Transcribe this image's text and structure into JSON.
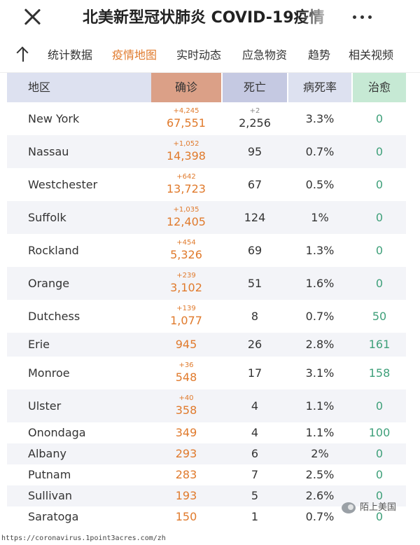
{
  "header": {
    "title": "北美新型冠状肺炎 COVID-19疫情"
  },
  "tabs": [
    {
      "label": "统计数据",
      "active": false
    },
    {
      "label": "疫情地图",
      "active": true
    },
    {
      "label": "实时动态",
      "active": false
    },
    {
      "label": "应急物资",
      "active": false
    },
    {
      "label": "趋势",
      "active": false
    },
    {
      "label": "相关视频",
      "active": false
    }
  ],
  "table": {
    "headers": {
      "region": "地区",
      "confirmed": "确诊",
      "deaths": "死亡",
      "fatality_rate": "病死率",
      "recovered": "治愈"
    },
    "rows": [
      {
        "region": "New York",
        "confirmed_delta": "+4,245",
        "confirmed": "67,551",
        "deaths_delta": "+2",
        "deaths": "2,256",
        "rate": "3.3%",
        "recovered": "0"
      },
      {
        "region": "Nassau",
        "confirmed_delta": "+1,052",
        "confirmed": "14,398",
        "deaths_delta": "",
        "deaths": "95",
        "rate": "0.7%",
        "recovered": "0"
      },
      {
        "region": "Westchester",
        "confirmed_delta": "+642",
        "confirmed": "13,723",
        "deaths_delta": "",
        "deaths": "67",
        "rate": "0.5%",
        "recovered": "0"
      },
      {
        "region": "Suffolk",
        "confirmed_delta": "+1,035",
        "confirmed": "12,405",
        "deaths_delta": "",
        "deaths": "124",
        "rate": "1%",
        "recovered": "0"
      },
      {
        "region": "Rockland",
        "confirmed_delta": "+454",
        "confirmed": "5,326",
        "deaths_delta": "",
        "deaths": "69",
        "rate": "1.3%",
        "recovered": "0"
      },
      {
        "region": "Orange",
        "confirmed_delta": "+239",
        "confirmed": "3,102",
        "deaths_delta": "",
        "deaths": "51",
        "rate": "1.6%",
        "recovered": "0"
      },
      {
        "region": "Dutchess",
        "confirmed_delta": "+139",
        "confirmed": "1,077",
        "deaths_delta": "",
        "deaths": "8",
        "rate": "0.7%",
        "recovered": "50"
      },
      {
        "region": "Erie",
        "confirmed_delta": "",
        "confirmed": "945",
        "deaths_delta": "",
        "deaths": "26",
        "rate": "2.8%",
        "recovered": "161"
      },
      {
        "region": "Monroe",
        "confirmed_delta": "+36",
        "confirmed": "548",
        "deaths_delta": "",
        "deaths": "17",
        "rate": "3.1%",
        "recovered": "158"
      },
      {
        "region": "Ulster",
        "confirmed_delta": "+40",
        "confirmed": "358",
        "deaths_delta": "",
        "deaths": "4",
        "rate": "1.1%",
        "recovered": "0"
      },
      {
        "region": "Onondaga",
        "confirmed_delta": "",
        "confirmed": "349",
        "deaths_delta": "",
        "deaths": "4",
        "rate": "1.1%",
        "recovered": "100"
      },
      {
        "region": "Albany",
        "confirmed_delta": "",
        "confirmed": "293",
        "deaths_delta": "",
        "deaths": "6",
        "rate": "2%",
        "recovered": "0"
      },
      {
        "region": "Putnam",
        "confirmed_delta": "",
        "confirmed": "283",
        "deaths_delta": "",
        "deaths": "7",
        "rate": "2.5%",
        "recovered": "0"
      },
      {
        "region": "Sullivan",
        "confirmed_delta": "",
        "confirmed": "193",
        "deaths_delta": "",
        "deaths": "5",
        "rate": "2.6%",
        "recovered": "0"
      },
      {
        "region": "Saratoga",
        "confirmed_delta": "",
        "confirmed": "150",
        "deaths_delta": "",
        "deaths": "1",
        "rate": "0.7%",
        "recovered": "0"
      }
    ]
  },
  "watermark": "陌上美国",
  "footer": "https://coronavirus.1point3acres.com/zh",
  "colors": {
    "accent_orange": "#e07a2c",
    "recovered_green": "#3fa07a",
    "header_confirmed": "#dba087",
    "header_deaths": "#c5c9e2",
    "header_recovered": "#c6e9d4",
    "header_region": "#dde1f0"
  },
  "icons": [
    "close-icon",
    "more-icon",
    "back-up-arrow-icon",
    "wechat-watermark-icon"
  ]
}
